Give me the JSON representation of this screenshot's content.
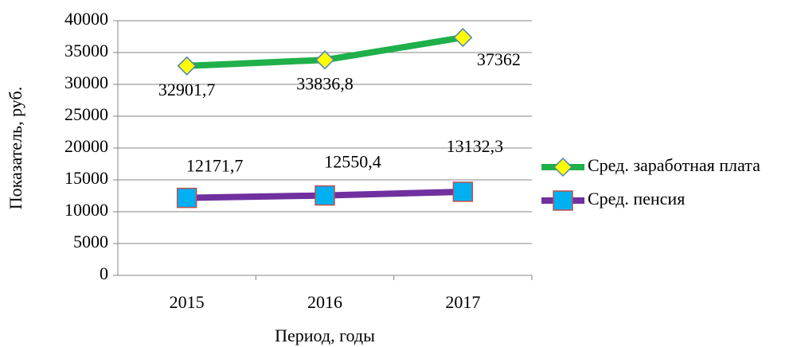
{
  "chart_data": {
    "type": "line",
    "x_label": "Период, годы",
    "y_label": "Показатель, руб.",
    "categories": [
      "2015",
      "2016",
      "2017"
    ],
    "series": [
      {
        "name": "Сред. заработная плата",
        "color": "#1fb04a",
        "marker_color": "#ffff00",
        "values": [
          32901.7,
          33836.8,
          37362
        ],
        "value_labels": [
          "32901,7",
          "33836,8",
          "37362"
        ]
      },
      {
        "name": "Сред. пенсия",
        "color": "#7030a0",
        "marker_color": "#00b0f0",
        "values": [
          12171.7,
          12550.4,
          13132.3
        ],
        "value_labels": [
          "12171,7",
          "12550,4",
          "13132,3"
        ]
      }
    ],
    "ylim": [
      0,
      40000
    ],
    "yticks": [
      0,
      5000,
      10000,
      15000,
      20000,
      25000,
      30000,
      35000,
      40000
    ],
    "grid": true,
    "legend": "right"
  }
}
